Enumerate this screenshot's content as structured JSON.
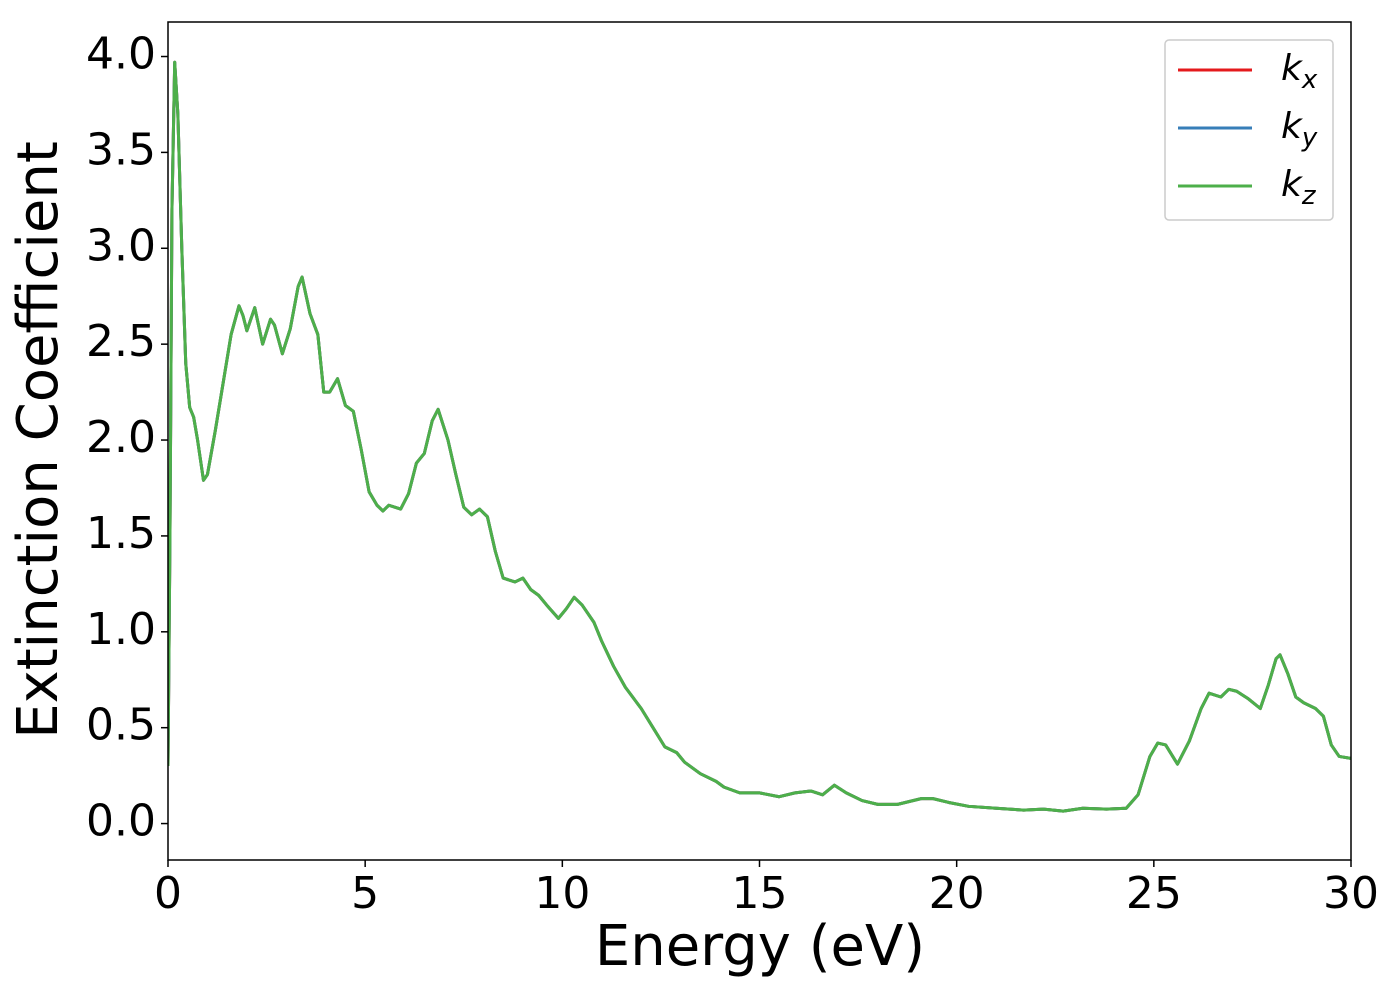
{
  "chart_data": {
    "type": "line",
    "xlabel": "Energy (eV)",
    "ylabel": "Extinction Coefficient",
    "x": [
      0,
      0.05,
      0.1,
      0.17,
      0.25,
      0.35,
      0.45,
      0.55,
      0.65,
      0.75,
      0.9,
      1.0,
      1.2,
      1.4,
      1.6,
      1.8,
      1.9,
      2.0,
      2.2,
      2.4,
      2.6,
      2.7,
      2.9,
      3.1,
      3.3,
      3.4,
      3.6,
      3.8,
      3.95,
      4.1,
      4.3,
      4.5,
      4.7,
      4.9,
      5.1,
      5.3,
      5.45,
      5.6,
      5.9,
      6.1,
      6.3,
      6.5,
      6.7,
      6.85,
      7.1,
      7.3,
      7.5,
      7.7,
      7.9,
      8.1,
      8.3,
      8.5,
      8.8,
      9.0,
      9.2,
      9.4,
      9.6,
      9.9,
      10.1,
      10.3,
      10.5,
      10.8,
      11.0,
      11.3,
      11.6,
      12.0,
      12.3,
      12.6,
      12.9,
      13.1,
      13.5,
      13.9,
      14.1,
      14.5,
      15.0,
      15.5,
      15.9,
      16.3,
      16.6,
      16.9,
      17.2,
      17.6,
      18.0,
      18.5,
      19.1,
      19.4,
      19.8,
      20.3,
      21.0,
      21.7,
      22.2,
      22.7,
      23.2,
      23.8,
      24.3,
      24.6,
      24.9,
      25.1,
      25.3,
      25.6,
      25.9,
      26.2,
      26.4,
      26.7,
      26.9,
      27.1,
      27.4,
      27.7,
      27.9,
      28.1,
      28.2,
      28.4,
      28.6,
      28.8,
      29.1,
      29.3,
      29.5,
      29.7,
      30.0
    ],
    "series": [
      {
        "name": "kx",
        "color": "#e41a1c",
        "values": [
          0.3,
          1.5,
          3.2,
          3.97,
          3.7,
          3.0,
          2.4,
          2.17,
          2.12,
          2.0,
          1.79,
          1.82,
          2.05,
          2.3,
          2.55,
          2.7,
          2.65,
          2.57,
          2.69,
          2.5,
          2.63,
          2.6,
          2.45,
          2.58,
          2.8,
          2.85,
          2.66,
          2.55,
          2.25,
          2.25,
          2.32,
          2.18,
          2.15,
          1.95,
          1.73,
          1.66,
          1.63,
          1.66,
          1.64,
          1.72,
          1.88,
          1.93,
          2.1,
          2.16,
          2.0,
          1.82,
          1.65,
          1.61,
          1.64,
          1.6,
          1.42,
          1.28,
          1.26,
          1.28,
          1.22,
          1.19,
          1.14,
          1.07,
          1.12,
          1.18,
          1.14,
          1.05,
          0.95,
          0.82,
          0.71,
          0.6,
          0.5,
          0.4,
          0.37,
          0.32,
          0.26,
          0.22,
          0.19,
          0.16,
          0.16,
          0.14,
          0.16,
          0.17,
          0.15,
          0.2,
          0.16,
          0.12,
          0.1,
          0.1,
          0.13,
          0.13,
          0.11,
          0.09,
          0.08,
          0.07,
          0.075,
          0.065,
          0.08,
          0.075,
          0.08,
          0.15,
          0.35,
          0.42,
          0.41,
          0.31,
          0.43,
          0.6,
          0.68,
          0.66,
          0.7,
          0.69,
          0.65,
          0.6,
          0.72,
          0.86,
          0.88,
          0.78,
          0.66,
          0.63,
          0.6,
          0.56,
          0.41,
          0.35,
          0.34
        ]
      },
      {
        "name": "ky",
        "color": "#377eb8",
        "values": [
          0.3,
          1.5,
          3.2,
          3.97,
          3.7,
          3.0,
          2.4,
          2.17,
          2.12,
          2.0,
          1.79,
          1.82,
          2.05,
          2.3,
          2.55,
          2.7,
          2.65,
          2.57,
          2.69,
          2.5,
          2.63,
          2.6,
          2.45,
          2.58,
          2.8,
          2.85,
          2.66,
          2.55,
          2.25,
          2.25,
          2.32,
          2.18,
          2.15,
          1.95,
          1.73,
          1.66,
          1.63,
          1.66,
          1.64,
          1.72,
          1.88,
          1.93,
          2.1,
          2.16,
          2.0,
          1.82,
          1.65,
          1.61,
          1.64,
          1.6,
          1.42,
          1.28,
          1.26,
          1.28,
          1.22,
          1.19,
          1.14,
          1.07,
          1.12,
          1.18,
          1.14,
          1.05,
          0.95,
          0.82,
          0.71,
          0.6,
          0.5,
          0.4,
          0.37,
          0.32,
          0.26,
          0.22,
          0.19,
          0.16,
          0.16,
          0.14,
          0.16,
          0.17,
          0.15,
          0.2,
          0.16,
          0.12,
          0.1,
          0.1,
          0.13,
          0.13,
          0.11,
          0.09,
          0.08,
          0.07,
          0.075,
          0.065,
          0.08,
          0.075,
          0.08,
          0.15,
          0.35,
          0.42,
          0.41,
          0.31,
          0.43,
          0.6,
          0.68,
          0.66,
          0.7,
          0.69,
          0.65,
          0.6,
          0.72,
          0.86,
          0.88,
          0.78,
          0.66,
          0.63,
          0.6,
          0.56,
          0.41,
          0.35,
          0.34
        ]
      },
      {
        "name": "kz",
        "color": "#4daf4a",
        "values": [
          0.3,
          1.5,
          3.2,
          3.97,
          3.7,
          3.0,
          2.4,
          2.17,
          2.12,
          2.0,
          1.79,
          1.82,
          2.05,
          2.3,
          2.55,
          2.7,
          2.65,
          2.57,
          2.69,
          2.5,
          2.63,
          2.6,
          2.45,
          2.58,
          2.8,
          2.85,
          2.66,
          2.55,
          2.25,
          2.25,
          2.32,
          2.18,
          2.15,
          1.95,
          1.73,
          1.66,
          1.63,
          1.66,
          1.64,
          1.72,
          1.88,
          1.93,
          2.1,
          2.16,
          2.0,
          1.82,
          1.65,
          1.61,
          1.64,
          1.6,
          1.42,
          1.28,
          1.26,
          1.28,
          1.22,
          1.19,
          1.14,
          1.07,
          1.12,
          1.18,
          1.14,
          1.05,
          0.95,
          0.82,
          0.71,
          0.6,
          0.5,
          0.4,
          0.37,
          0.32,
          0.26,
          0.22,
          0.19,
          0.16,
          0.16,
          0.14,
          0.16,
          0.17,
          0.15,
          0.2,
          0.16,
          0.12,
          0.1,
          0.1,
          0.13,
          0.13,
          0.11,
          0.09,
          0.08,
          0.07,
          0.075,
          0.065,
          0.08,
          0.075,
          0.08,
          0.15,
          0.35,
          0.42,
          0.41,
          0.31,
          0.43,
          0.6,
          0.68,
          0.66,
          0.7,
          0.69,
          0.65,
          0.6,
          0.72,
          0.86,
          0.88,
          0.78,
          0.66,
          0.63,
          0.6,
          0.56,
          0.41,
          0.35,
          0.34
        ]
      }
    ],
    "xlim": [
      0,
      30
    ],
    "xticks": [
      0,
      5,
      10,
      15,
      20,
      25,
      30
    ],
    "ylim": [
      -0.19,
      4.18
    ],
    "yticks": [
      {
        "value": 0,
        "label": "0.0"
      },
      0.5,
      {
        "value": 1,
        "label": "1.0"
      },
      1.5,
      {
        "value": 2,
        "label": "2.0"
      },
      2.5,
      {
        "value": 3,
        "label": "3.0"
      },
      3.5,
      {
        "value": 4,
        "label": "4.0"
      }
    ],
    "grid": false,
    "legend": "upper right"
  }
}
